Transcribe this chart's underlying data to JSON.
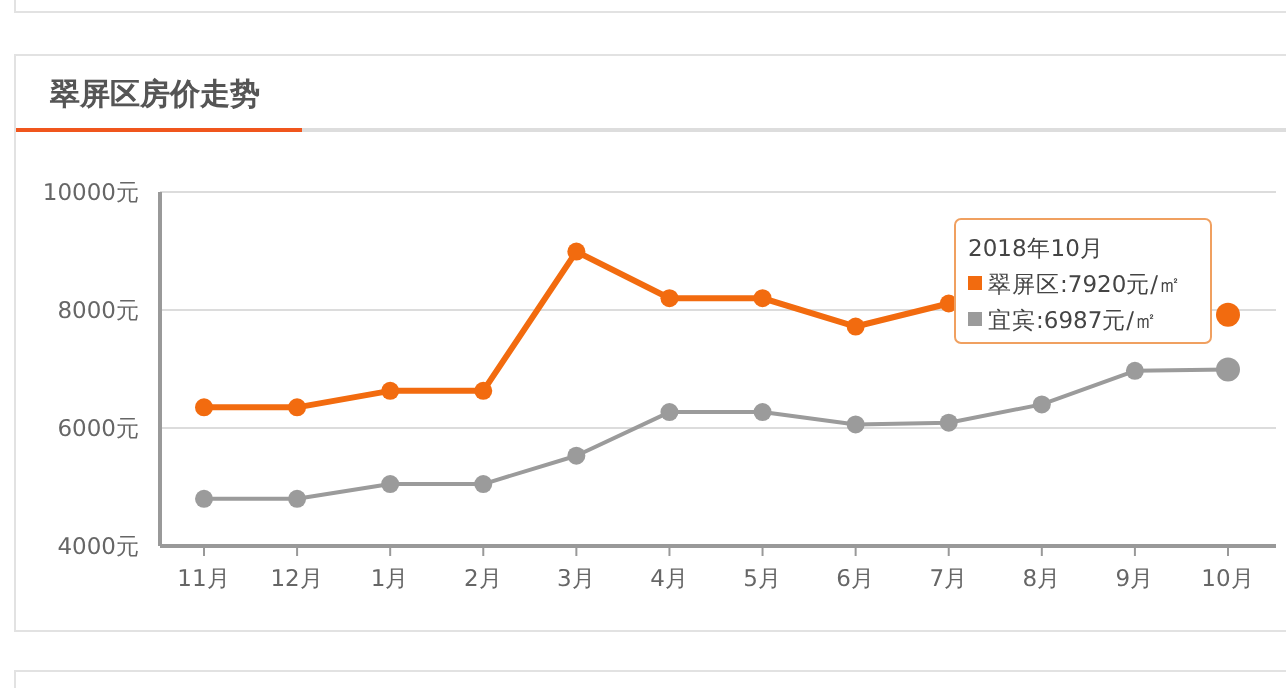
{
  "chart_data": {
    "type": "line",
    "title": "翠屏区房价走势",
    "categories": [
      "11月",
      "12月",
      "1月",
      "2月",
      "3月",
      "4月",
      "5月",
      "6月",
      "7月",
      "8月",
      "9月",
      "10月"
    ],
    "series": [
      {
        "color": "#f26b0f",
        "values": [
          6350,
          6350,
          6630,
          6630,
          8990,
          8200,
          8200,
          7720,
          8110,
          null,
          null,
          7920
        ]
      },
      {
        "color": "#9b9b9b",
        "values": [
          4800,
          4800,
          5050,
          5050,
          5530,
          6270,
          6270,
          6060,
          6090,
          6400,
          6970,
          6990
        ]
      }
    ],
    "ylim": [
      4000,
      10000
    ],
    "yticks": [
      {
        "value": 4000,
        "label": "4000元"
      },
      {
        "value": 6000,
        "label": "6000元"
      },
      {
        "value": 8000,
        "label": "8000元"
      },
      {
        "value": 10000,
        "label": "10000元"
      }
    ],
    "grid": "y",
    "marker": "circle",
    "annotations": [
      "2018年10月",
      "翠屏区:7920元/㎡",
      "宜宾:6987元/㎡"
    ]
  }
}
